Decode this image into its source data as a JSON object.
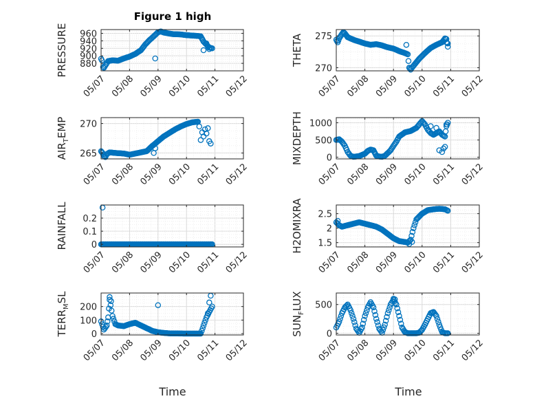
{
  "chart_data": {
    "type": "scatter",
    "title": "Figure 1 high",
    "xlabel": "Time",
    "marker_color": "#0072BD",
    "x_ticks": [
      "05/07",
      "05/08",
      "05/09",
      "05/10",
      "05/11",
      "05/12"
    ],
    "x_range": [
      "05/07",
      "05/12"
    ],
    "grid": true,
    "subplots": [
      {
        "ylabel": "PRESSURE",
        "ylim": [
          860,
          970
        ],
        "yticks": [
          880,
          900,
          920,
          940,
          960
        ],
        "anchors": [
          [
            0.0,
            892
          ],
          [
            0.03,
            888
          ],
          [
            0.07,
            870
          ],
          [
            0.1,
            868
          ],
          [
            0.18,
            878
          ],
          [
            0.25,
            886
          ],
          [
            0.4,
            888
          ],
          [
            0.6,
            887
          ],
          [
            0.8,
            893
          ],
          [
            1.0,
            898
          ],
          [
            1.2,
            905
          ],
          [
            1.4,
            915
          ],
          [
            1.55,
            930
          ],
          [
            1.7,
            942
          ],
          [
            1.85,
            952
          ],
          [
            2.0,
            963
          ],
          [
            2.1,
            965
          ],
          [
            2.2,
            962
          ],
          [
            2.5,
            958
          ],
          [
            2.8,
            957
          ],
          [
            3.0,
            955
          ],
          [
            3.2,
            954
          ],
          [
            3.4,
            953
          ],
          [
            3.5,
            952
          ],
          [
            3.55,
            945
          ],
          [
            3.6,
            938
          ],
          [
            3.7,
            930
          ],
          [
            3.8,
            922
          ],
          [
            3.9,
            920
          ]
        ],
        "extra": [
          [
            1.9,
            893
          ],
          [
            3.6,
            915
          ],
          [
            3.75,
            925
          ],
          [
            3.8,
            918
          ],
          [
            3.7,
            933
          ]
        ]
      },
      {
        "ylabel": "THETA",
        "ylim": [
          269.5,
          276
        ],
        "yticks": [
          270,
          275
        ],
        "anchors": [
          [
            0.0,
            274.4
          ],
          [
            0.05,
            274.0
          ],
          [
            0.1,
            274.6
          ],
          [
            0.2,
            275.3
          ],
          [
            0.25,
            275.6
          ],
          [
            0.3,
            275.4
          ],
          [
            0.4,
            274.8
          ],
          [
            0.6,
            274.4
          ],
          [
            0.8,
            274.1
          ],
          [
            1.0,
            273.8
          ],
          [
            1.2,
            273.6
          ],
          [
            1.4,
            273.7
          ],
          [
            1.6,
            273.5
          ],
          [
            1.8,
            273.2
          ],
          [
            2.0,
            273.0
          ],
          [
            2.2,
            272.6
          ],
          [
            2.4,
            272.3
          ],
          [
            2.5,
            272.1
          ],
          [
            2.55,
            270.0
          ],
          [
            2.6,
            269.7
          ],
          [
            2.7,
            270.3
          ],
          [
            2.9,
            271.4
          ],
          [
            3.1,
            272.3
          ],
          [
            3.3,
            273.1
          ],
          [
            3.5,
            273.6
          ],
          [
            3.7,
            274.0
          ],
          [
            3.8,
            274.6
          ],
          [
            3.85,
            274.5
          ],
          [
            3.9,
            273.3
          ]
        ],
        "extra": [
          [
            2.45,
            273.6
          ],
          [
            3.85,
            274.0
          ],
          [
            3.9,
            273.8
          ]
        ]
      },
      {
        "ylabel": "AIR_TEMP",
        "ylim": [
          264,
          271
        ],
        "yticks": [
          265,
          270
        ],
        "anchors": [
          [
            0.0,
            265.3
          ],
          [
            0.05,
            265.0
          ],
          [
            0.1,
            264.5
          ],
          [
            0.15,
            264.3
          ],
          [
            0.2,
            264.8
          ],
          [
            0.3,
            265.1
          ],
          [
            0.5,
            265.0
          ],
          [
            0.8,
            264.9
          ],
          [
            1.0,
            264.7
          ],
          [
            1.2,
            264.9
          ],
          [
            1.4,
            265.1
          ],
          [
            1.6,
            265.3
          ],
          [
            1.8,
            266.2
          ],
          [
            2.0,
            267.0
          ],
          [
            2.2,
            267.8
          ],
          [
            2.4,
            268.4
          ],
          [
            2.6,
            269.0
          ],
          [
            2.8,
            269.5
          ],
          [
            3.0,
            269.9
          ],
          [
            3.2,
            270.2
          ],
          [
            3.4,
            270.3
          ]
        ],
        "extra": [
          [
            1.85,
            265.0
          ],
          [
            1.9,
            265.8
          ],
          [
            3.45,
            269.5
          ],
          [
            3.55,
            268.5
          ],
          [
            3.6,
            267.8
          ],
          [
            3.7,
            268.3
          ],
          [
            3.8,
            267.0
          ],
          [
            3.85,
            266.6
          ],
          [
            3.75,
            269.2
          ],
          [
            3.65,
            269.0
          ],
          [
            3.5,
            267.2
          ]
        ]
      },
      {
        "ylabel": "MIXDEPTH",
        "ylim": [
          -50,
          1150
        ],
        "yticks": [
          0,
          500,
          1000
        ],
        "anchors": [
          [
            0.0,
            500
          ],
          [
            0.1,
            520
          ],
          [
            0.2,
            450
          ],
          [
            0.3,
            330
          ],
          [
            0.4,
            150
          ],
          [
            0.5,
            40
          ],
          [
            0.6,
            10
          ],
          [
            0.8,
            30
          ],
          [
            1.0,
            100
          ],
          [
            1.1,
            180
          ],
          [
            1.2,
            220
          ],
          [
            1.3,
            200
          ],
          [
            1.35,
            120
          ],
          [
            1.4,
            40
          ],
          [
            1.5,
            20
          ],
          [
            1.6,
            10
          ],
          [
            1.7,
            40
          ],
          [
            1.8,
            120
          ],
          [
            1.9,
            200
          ],
          [
            2.0,
            330
          ],
          [
            2.1,
            450
          ],
          [
            2.2,
            600
          ],
          [
            2.4,
            720
          ],
          [
            2.6,
            760
          ],
          [
            2.8,
            850
          ],
          [
            2.9,
            950
          ],
          [
            3.0,
            1050
          ],
          [
            3.1,
            950
          ],
          [
            3.2,
            800
          ],
          [
            3.3,
            700
          ],
          [
            3.4,
            650
          ],
          [
            3.5,
            700
          ],
          [
            3.6,
            750
          ],
          [
            3.7,
            650
          ],
          [
            3.8,
            600
          ],
          [
            3.85,
            900
          ],
          [
            3.9,
            1000
          ]
        ],
        "extra": [
          [
            3.3,
            900
          ],
          [
            3.5,
            850
          ],
          [
            3.6,
            200
          ],
          [
            3.7,
            150
          ],
          [
            3.75,
            250
          ],
          [
            3.8,
            300
          ],
          [
            3.85,
            950
          ]
        ]
      },
      {
        "ylabel": "RAINFALL",
        "ylim": [
          -0.02,
          0.3
        ],
        "yticks": [
          0,
          0.1,
          0.2
        ],
        "anchors": [
          [
            0.0,
            0.0
          ],
          [
            3.9,
            0.0
          ]
        ],
        "extra": [
          [
            0.05,
            0.28
          ]
        ]
      },
      {
        "ylabel": "H2OMIXRA",
        "ylim": [
          1.35,
          2.8
        ],
        "yticks": [
          1.5,
          2,
          2.5
        ],
        "anchors": [
          [
            0.0,
            2.2
          ],
          [
            0.1,
            2.1
          ],
          [
            0.2,
            2.05
          ],
          [
            0.4,
            2.1
          ],
          [
            0.6,
            2.15
          ],
          [
            0.8,
            2.2
          ],
          [
            1.0,
            2.15
          ],
          [
            1.2,
            2.1
          ],
          [
            1.4,
            2.05
          ],
          [
            1.6,
            1.95
          ],
          [
            1.8,
            1.8
          ],
          [
            2.0,
            1.65
          ],
          [
            2.2,
            1.55
          ],
          [
            2.4,
            1.52
          ],
          [
            2.5,
            1.5
          ],
          [
            2.6,
            1.6
          ],
          [
            2.7,
            2.0
          ],
          [
            2.8,
            2.3
          ],
          [
            3.0,
            2.5
          ],
          [
            3.2,
            2.62
          ],
          [
            3.4,
            2.65
          ],
          [
            3.6,
            2.67
          ],
          [
            3.8,
            2.65
          ],
          [
            3.9,
            2.6
          ]
        ],
        "extra": [
          [
            2.55,
            1.45
          ],
          [
            2.65,
            1.52
          ],
          [
            0.05,
            2.25
          ]
        ]
      },
      {
        "ylabel": "TERR_MSL",
        "ylim": [
          -10,
          300
        ],
        "yticks": [
          0,
          100,
          200
        ],
        "anchors": [
          [
            0.0,
            90
          ],
          [
            0.1,
            30
          ],
          [
            0.2,
            60
          ],
          [
            0.25,
            120
          ],
          [
            0.3,
            250
          ],
          [
            0.4,
            130
          ],
          [
            0.5,
            70
          ],
          [
            0.6,
            60
          ],
          [
            0.8,
            55
          ],
          [
            1.0,
            70
          ],
          [
            1.2,
            80
          ],
          [
            1.4,
            60
          ],
          [
            1.6,
            40
          ],
          [
            1.8,
            20
          ],
          [
            2.0,
            10
          ],
          [
            2.2,
            5
          ],
          [
            2.4,
            2
          ],
          [
            3.0,
            0
          ],
          [
            3.5,
            0
          ],
          [
            3.6,
            60
          ],
          [
            3.7,
            120
          ],
          [
            3.8,
            160
          ],
          [
            3.9,
            200
          ]
        ],
        "extra": [
          [
            0.3,
            270
          ],
          [
            0.35,
            240
          ],
          [
            2.0,
            210
          ],
          [
            3.85,
            280
          ],
          [
            3.8,
            230
          ],
          [
            3.75,
            150
          ]
        ]
      },
      {
        "ylabel": "SUN_FLUX",
        "ylim": [
          -30,
          700
        ],
        "yticks": [
          0,
          500
        ],
        "anchors": [
          [
            0.0,
            100
          ],
          [
            0.1,
            200
          ],
          [
            0.2,
            350
          ],
          [
            0.3,
            450
          ],
          [
            0.4,
            500
          ],
          [
            0.5,
            400
          ],
          [
            0.6,
            250
          ],
          [
            0.7,
            80
          ],
          [
            0.8,
            10
          ],
          [
            0.9,
            100
          ],
          [
            1.0,
            300
          ],
          [
            1.1,
            450
          ],
          [
            1.2,
            540
          ],
          [
            1.3,
            450
          ],
          [
            1.4,
            250
          ],
          [
            1.5,
            80
          ],
          [
            1.6,
            10
          ],
          [
            1.7,
            150
          ],
          [
            1.8,
            350
          ],
          [
            1.9,
            500
          ],
          [
            2.0,
            580
          ],
          [
            2.1,
            500
          ],
          [
            2.2,
            300
          ],
          [
            2.3,
            100
          ],
          [
            2.4,
            20
          ],
          [
            2.5,
            0
          ],
          [
            2.6,
            0
          ],
          [
            2.8,
            0
          ],
          [
            2.9,
            10
          ],
          [
            3.0,
            60
          ],
          [
            3.1,
            150
          ],
          [
            3.2,
            250
          ],
          [
            3.3,
            350
          ],
          [
            3.4,
            370
          ],
          [
            3.5,
            300
          ],
          [
            3.6,
            150
          ],
          [
            3.7,
            20
          ],
          [
            3.8,
            0
          ],
          [
            3.9,
            0
          ]
        ],
        "extra": [
          [
            2.0,
            600
          ],
          [
            2.05,
            590
          ]
        ]
      }
    ]
  }
}
